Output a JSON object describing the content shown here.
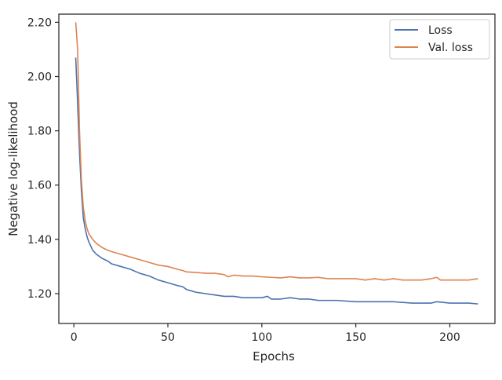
{
  "chart_data": {
    "type": "line",
    "title": "",
    "xlabel": "Epochs",
    "ylabel": "Negative log-likelihood",
    "xlim": [
      -8,
      224
    ],
    "ylim": [
      1.09,
      2.23
    ],
    "xticks": [
      0,
      50,
      100,
      150,
      200
    ],
    "yticks": [
      1.2,
      1.4,
      1.6,
      1.8,
      2.0,
      2.2
    ],
    "ytick_labels": [
      "1.20",
      "1.40",
      "1.60",
      "1.80",
      "2.00",
      "2.20"
    ],
    "grid": false,
    "legend_position": "top-right",
    "series": [
      {
        "name": "Loss",
        "color": "#4c72b0",
        "x": [
          1,
          2,
          3,
          4,
          5,
          6,
          7,
          8,
          10,
          12,
          15,
          18,
          20,
          25,
          30,
          35,
          40,
          45,
          50,
          55,
          58,
          60,
          65,
          70,
          75,
          80,
          85,
          90,
          95,
          100,
          103,
          105,
          110,
          115,
          120,
          125,
          130,
          140,
          150,
          160,
          170,
          180,
          190,
          193,
          200,
          210,
          215
        ],
        "y": [
          2.07,
          1.9,
          1.72,
          1.58,
          1.48,
          1.44,
          1.41,
          1.39,
          1.36,
          1.345,
          1.33,
          1.32,
          1.31,
          1.3,
          1.29,
          1.275,
          1.265,
          1.25,
          1.24,
          1.23,
          1.225,
          1.215,
          1.205,
          1.2,
          1.195,
          1.19,
          1.19,
          1.185,
          1.185,
          1.185,
          1.19,
          1.18,
          1.18,
          1.185,
          1.18,
          1.18,
          1.175,
          1.175,
          1.17,
          1.17,
          1.17,
          1.165,
          1.165,
          1.17,
          1.165,
          1.165,
          1.162
        ]
      },
      {
        "name": "Val. loss",
        "color": "#dd8452",
        "x": [
          1,
          2,
          3,
          4,
          5,
          6,
          7,
          8,
          10,
          12,
          15,
          18,
          20,
          25,
          30,
          35,
          40,
          45,
          50,
          55,
          58,
          60,
          65,
          70,
          75,
          80,
          82,
          85,
          90,
          95,
          100,
          105,
          110,
          115,
          120,
          125,
          130,
          135,
          140,
          145,
          150,
          155,
          160,
          165,
          170,
          175,
          180,
          185,
          190,
          193,
          195,
          200,
          205,
          210,
          215
        ],
        "y": [
          2.2,
          2.1,
          1.8,
          1.62,
          1.52,
          1.47,
          1.44,
          1.42,
          1.4,
          1.385,
          1.37,
          1.36,
          1.355,
          1.345,
          1.335,
          1.325,
          1.315,
          1.305,
          1.3,
          1.29,
          1.285,
          1.28,
          1.278,
          1.275,
          1.275,
          1.27,
          1.262,
          1.268,
          1.265,
          1.265,
          1.262,
          1.26,
          1.258,
          1.262,
          1.258,
          1.258,
          1.26,
          1.255,
          1.255,
          1.255,
          1.255,
          1.25,
          1.255,
          1.25,
          1.255,
          1.25,
          1.25,
          1.25,
          1.255,
          1.26,
          1.25,
          1.25,
          1.25,
          1.25,
          1.255
        ]
      }
    ]
  }
}
